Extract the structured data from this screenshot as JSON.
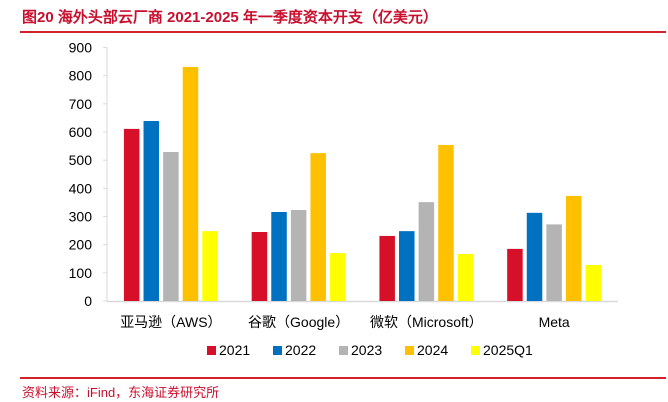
{
  "header": {
    "title": "图20  海外头部云厂商 2021-2025 年一季度资本开支（亿美元）"
  },
  "footer": {
    "source": "资料来源：iFind，东海证券研究所"
  },
  "chart_data": {
    "type": "bar",
    "title": "海外头部云厂商 2021-2025 年一季度资本开支（亿美元）",
    "xlabel": "",
    "ylabel": "",
    "ylim": [
      0,
      900
    ],
    "yticks": [
      0,
      100,
      200,
      300,
      400,
      500,
      600,
      700,
      800,
      900
    ],
    "grid": false,
    "legend_position": "bottom",
    "categories": [
      "亚马逊（AWS）",
      "谷歌（Google）",
      "微软（Microsoft）",
      "Meta"
    ],
    "series": [
      {
        "name": "2021",
        "color": "#d7102a",
        "values": [
          611,
          245,
          231,
          185
        ]
      },
      {
        "name": "2022",
        "color": "#0070c0",
        "values": [
          639,
          316,
          248,
          313
        ]
      },
      {
        "name": "2023",
        "color": "#b4b4b4",
        "values": [
          529,
          323,
          351,
          272
        ]
      },
      {
        "name": "2024",
        "color": "#ffc000",
        "values": [
          831,
          525,
          554,
          373
        ]
      },
      {
        "name": "2025Q1",
        "color": "#ffff00",
        "values": [
          248,
          170,
          167,
          128
        ]
      }
    ]
  }
}
